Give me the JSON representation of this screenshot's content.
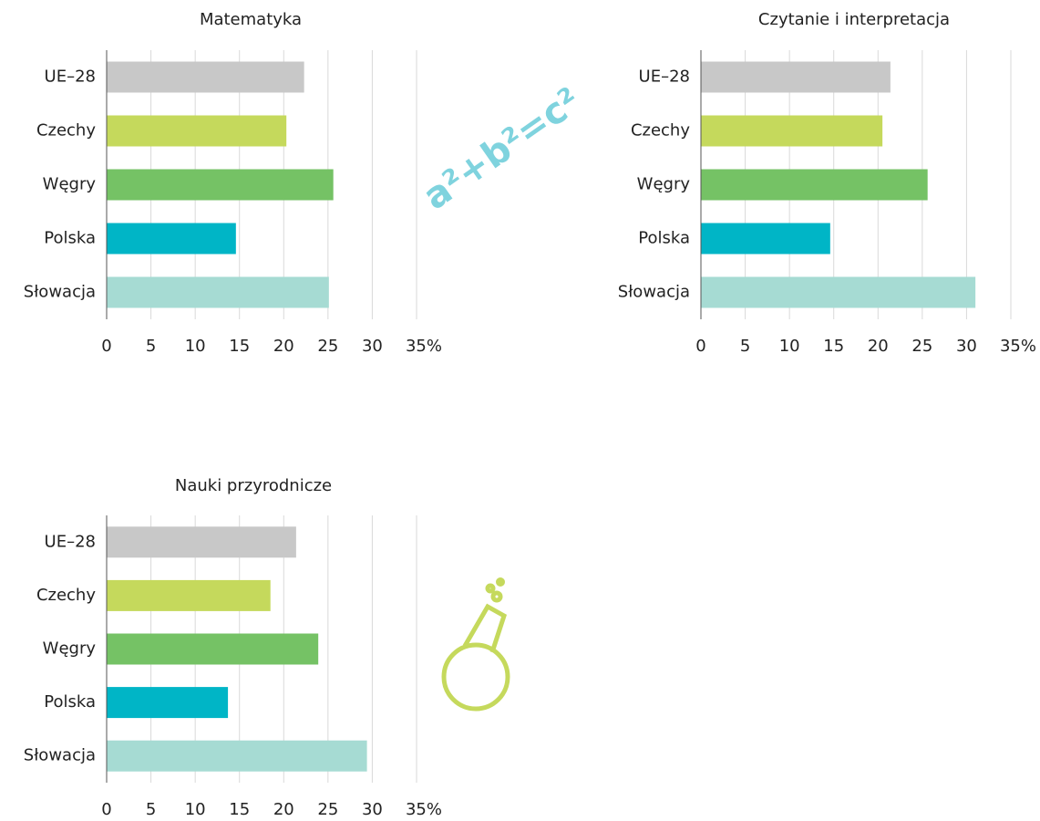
{
  "chart_data": [
    {
      "type": "bar",
      "orientation": "horizontal",
      "title": "Matematyka",
      "categories": [
        "UE–28",
        "Czechy",
        "Węgry",
        "Polska",
        "Słowacja"
      ],
      "values": [
        22.3,
        20.3,
        25.6,
        14.6,
        25.1
      ],
      "colors": [
        "#c8c8c8",
        "#c5d95c",
        "#75c265",
        "#00b5c6",
        "#a6dbd3"
      ],
      "xlim": [
        0,
        35
      ],
      "xticks": [
        0,
        5,
        10,
        15,
        20,
        25,
        30,
        {
          "value": 35,
          "label": "35%"
        }
      ],
      "grid": true,
      "annotation": "a²+b²=c²"
    },
    {
      "type": "bar",
      "orientation": "horizontal",
      "title": "Czytanie i interpretacja",
      "categories": [
        "UE–28",
        "Czechy",
        "Węgry",
        "Polska",
        "Słowacja"
      ],
      "values": [
        21.4,
        20.5,
        25.6,
        14.6,
        31.0
      ],
      "colors": [
        "#c8c8c8",
        "#c5d95c",
        "#75c265",
        "#00b5c6",
        "#a6dbd3"
      ],
      "xlim": [
        0,
        35
      ],
      "xticks": [
        0,
        5,
        10,
        15,
        20,
        25,
        30,
        {
          "value": 35,
          "label": "35%"
        }
      ],
      "grid": true
    },
    {
      "type": "bar",
      "orientation": "horizontal",
      "title": "Nauki przyrodnicze",
      "categories": [
        "UE–28",
        "Czechy",
        "Węgry",
        "Polska",
        "Słowacja"
      ],
      "values": [
        21.4,
        18.5,
        23.9,
        13.7,
        29.4
      ],
      "colors": [
        "#c8c8c8",
        "#c5d95c",
        "#75c265",
        "#00b5c6",
        "#a6dbd3"
      ],
      "xlim": [
        0,
        35
      ],
      "xticks": [
        0,
        5,
        10,
        15,
        20,
        25,
        30,
        {
          "value": 35,
          "label": "35%"
        }
      ],
      "grid": true
    }
  ]
}
